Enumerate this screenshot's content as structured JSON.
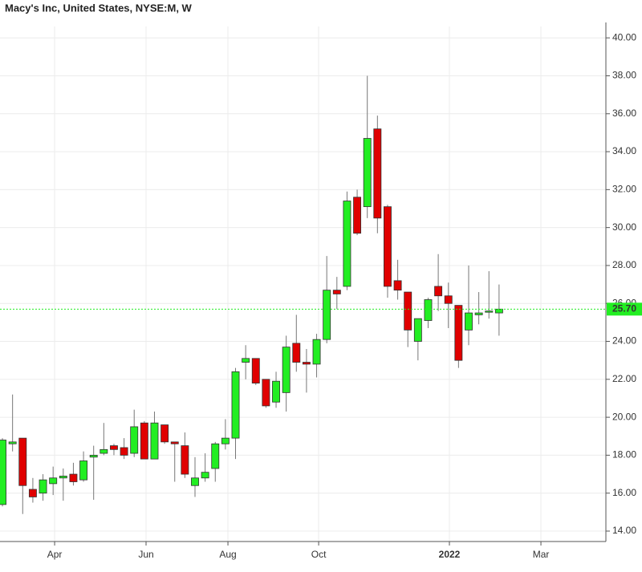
{
  "chart_data": {
    "type": "candlestick",
    "title": "Macy's Inc, United States, NYSE:M, W",
    "categories": [
      null,
      null,
      null,
      null,
      null,
      null,
      null,
      null,
      null,
      null,
      null,
      null,
      null,
      null,
      null,
      null,
      null,
      null,
      null,
      null,
      null,
      null,
      null,
      null,
      null,
      null,
      null,
      null,
      null,
      null,
      null,
      null,
      null,
      null,
      null,
      null,
      null,
      null,
      null,
      null,
      null,
      null,
      null,
      null,
      null,
      null,
      null,
      null,
      null,
      null
    ],
    "series": [
      {
        "open": [
          15.4,
          18.6,
          18.9,
          16.2,
          16.0,
          16.5,
          16.8,
          17.0,
          16.7,
          17.9,
          18.1,
          18.5,
          18.4,
          18.1,
          19.7,
          17.8,
          19.6,
          18.7,
          18.5,
          16.4,
          16.8,
          17.3,
          18.6,
          18.9,
          22.9,
          23.1,
          22.0,
          20.8,
          21.3,
          23.9,
          22.9,
          22.8,
          24.1,
          26.7,
          26.9,
          31.6,
          31.1,
          35.2,
          31.1,
          27.2,
          26.6,
          24.0,
          25.1,
          26.9,
          26.4,
          25.9,
          24.6,
          25.4,
          25.55,
          25.5
        ],
        "high": [
          18.9,
          21.2,
          18.9,
          16.8,
          17.0,
          17.4,
          17.3,
          17.6,
          18.2,
          18.5,
          19.7,
          18.6,
          18.9,
          20.4,
          19.8,
          20.3,
          19.6,
          18.7,
          19.2,
          17.9,
          18.1,
          18.7,
          19.9,
          22.6,
          23.8,
          23.1,
          22.0,
          22.4,
          24.3,
          25.4,
          23.6,
          24.4,
          28.5,
          27.4,
          31.9,
          32.0,
          38.0,
          35.9,
          31.2,
          28.3,
          26.6,
          25.2,
          26.3,
          28.6,
          27.1,
          25.9,
          28.0,
          26.6,
          27.7,
          27.0
        ],
        "low": [
          15.3,
          18.2,
          14.9,
          15.5,
          15.6,
          15.9,
          15.6,
          16.4,
          16.6,
          15.65,
          18.0,
          18.0,
          17.8,
          17.9,
          17.8,
          17.8,
          18.6,
          16.6,
          16.8,
          15.8,
          16.6,
          16.6,
          18.3,
          17.8,
          22.0,
          21.7,
          20.5,
          20.5,
          20.3,
          22.4,
          21.3,
          22.1,
          23.9,
          25.7,
          26.7,
          29.6,
          30.5,
          29.7,
          26.3,
          26.2,
          23.7,
          23.0,
          24.7,
          25.6,
          24.7,
          22.6,
          23.8,
          24.9,
          25.2,
          24.3
        ],
        "close": [
          18.8,
          18.7,
          16.4,
          15.8,
          16.7,
          16.8,
          16.9,
          16.6,
          17.7,
          18.0,
          18.3,
          18.3,
          18.0,
          19.5,
          17.8,
          19.7,
          18.7,
          18.6,
          17.0,
          16.8,
          17.1,
          18.6,
          18.9,
          22.4,
          23.1,
          21.8,
          20.6,
          21.9,
          23.7,
          22.9,
          22.8,
          24.1,
          26.7,
          26.5,
          31.4,
          29.7,
          34.7,
          30.5,
          26.9,
          26.7,
          24.6,
          25.2,
          26.2,
          26.4,
          26.0,
          23.0,
          25.5,
          25.5,
          25.6,
          25.7
        ]
      }
    ],
    "up_color": "#22ee22",
    "down_color": "#e00000",
    "xlim": [
      -0.24,
      59.54
    ],
    "xticks": [
      {
        "value": 5.15,
        "label": "Apr"
      },
      {
        "value": 14.17,
        "label": "Jun"
      },
      {
        "value": 22.25,
        "label": "Aug"
      },
      {
        "value": 31.2,
        "label": "Oct"
      },
      {
        "value": 44.1,
        "label": "2022"
      },
      {
        "value": 53.13,
        "label": "Mar"
      }
    ],
    "ylim": [
      13.45,
      40.6
    ],
    "yticks": [
      {
        "value": 14,
        "label": "14.00"
      },
      {
        "value": 16,
        "label": "16.00"
      },
      {
        "value": 18,
        "label": "18.00"
      },
      {
        "value": 20,
        "label": "20.00"
      },
      {
        "value": 22,
        "label": "22.00"
      },
      {
        "value": 24,
        "label": "24.00"
      },
      {
        "value": 26,
        "label": "26.00"
      },
      {
        "value": 28,
        "label": "28.00"
      },
      {
        "value": 30,
        "label": "30.00"
      },
      {
        "value": 32,
        "label": "32.00"
      },
      {
        "value": 34,
        "label": "34.00"
      },
      {
        "value": 36,
        "label": "36.00"
      },
      {
        "value": 38,
        "label": "38.00"
      },
      {
        "value": 40,
        "label": "40.00"
      }
    ],
    "last_price": {
      "value": 25.7,
      "label": "25.70"
    },
    "grid": true
  }
}
